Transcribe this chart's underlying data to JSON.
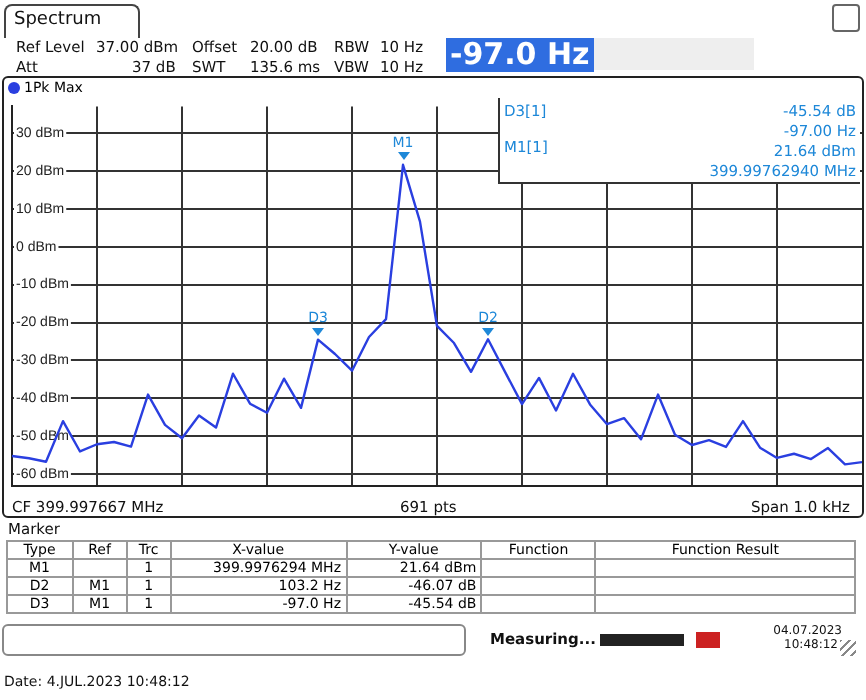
{
  "chart_data": {
    "type": "line",
    "title": "Spectrum",
    "categories": [
      null,
      null,
      null,
      null,
      null,
      null,
      null,
      null,
      null,
      null,
      null,
      null,
      null,
      null,
      null,
      null,
      null,
      null,
      null,
      null,
      null,
      null,
      null,
      null,
      null,
      null,
      null,
      null,
      null,
      null,
      null,
      null,
      null,
      null,
      null,
      null,
      null,
      null,
      null,
      null,
      null,
      null,
      null,
      null,
      null,
      null,
      null,
      null,
      null,
      null,
      null
    ],
    "series": [
      {
        "name": "1Pk Max",
        "color": "#2a3fe0",
        "values": [
          -55.2,
          -55.8,
          -56.7,
          -46,
          -54,
          -52.1,
          -51.5,
          -52.7,
          -39,
          -47,
          -50.5,
          -44.5,
          -47.7,
          -33.5,
          -41.4,
          -43.8,
          -34.8,
          -42.5,
          -24.5,
          -28.3,
          -32.7,
          -23.8,
          -19.1,
          21.6,
          6.6,
          -20.9,
          -25.4,
          -33,
          -24.4,
          -33,
          -41.5,
          -34.6,
          -43.2,
          -33.5,
          -41.6,
          -46.8,
          -45.2,
          -50.8,
          -39,
          -49.6,
          -52.3,
          -51,
          -52.8,
          -46,
          -53,
          -55.7,
          -54.6,
          -56,
          -53.1,
          -57.4,
          -56.8
        ],
        "value_labels": [
          null,
          null,
          null,
          null,
          null,
          null,
          null,
          null,
          null,
          null,
          null,
          null,
          null,
          null,
          null,
          null,
          null,
          null,
          "D3",
          null,
          null,
          null,
          null,
          "M1",
          null,
          null,
          null,
          null,
          "D2",
          null,
          null,
          null,
          null,
          null,
          null,
          null,
          null,
          null,
          null,
          null,
          null,
          null,
          null,
          null,
          null,
          null,
          null,
          null,
          null,
          null,
          null
        ]
      }
    ],
    "ylim": [
      -63,
      37
    ],
    "yticks": [
      {
        "value": 30,
        "label": "30 dBm"
      },
      {
        "value": 20,
        "label": "20 dBm"
      },
      {
        "value": 10,
        "label": "10 dBm"
      },
      {
        "value": 0,
        "label": "0 dBm"
      },
      {
        "value": -10,
        "label": "-10 dBm"
      },
      {
        "value": -20,
        "label": "-20 dBm"
      },
      {
        "value": -30,
        "label": "-30 dBm"
      },
      {
        "value": -40,
        "label": "-40 dBm"
      },
      {
        "value": -50,
        "label": "-50 dBm"
      },
      {
        "value": -60,
        "label": "-60 dBm"
      }
    ],
    "tick_labels": "y",
    "grid": true,
    "legend": "top left",
    "marker": "none",
    "line_style": "solid",
    "annotations": [
      "Ref Level",
      "37.00 dBm",
      "Offset",
      "20.00 dB",
      "RBW",
      "10 Hz",
      "Att",
      "37 dB",
      "SWT",
      "135.6 ms",
      "VBW",
      "10 Hz",
      "-97.0 Hz",
      "D3[1]",
      "-45.54 dB",
      "-97.00 Hz",
      "M1[1]",
      "21.64 dBm",
      "399.99762940 MHz",
      "CF 399.997667 MHz",
      "691 pts",
      "Span 1.0 kHz",
      "Marker",
      "Type",
      "Ref",
      "Trc",
      "X-value",
      "Y-value",
      "Function",
      "Function Result",
      "M1",
      "1",
      "399.9976294 MHz",
      "21.64 dBm",
      "D2",
      "M1",
      "1",
      "103.2 Hz",
      "-46.07 dB",
      "D3",
      "M1",
      "1",
      "-97.0 Hz",
      "-45.54 dB",
      "Measuring...",
      "04.07.2023",
      "10:48:12",
      "Date: 4.JUL.2023 10:48:12"
    ]
  }
}
